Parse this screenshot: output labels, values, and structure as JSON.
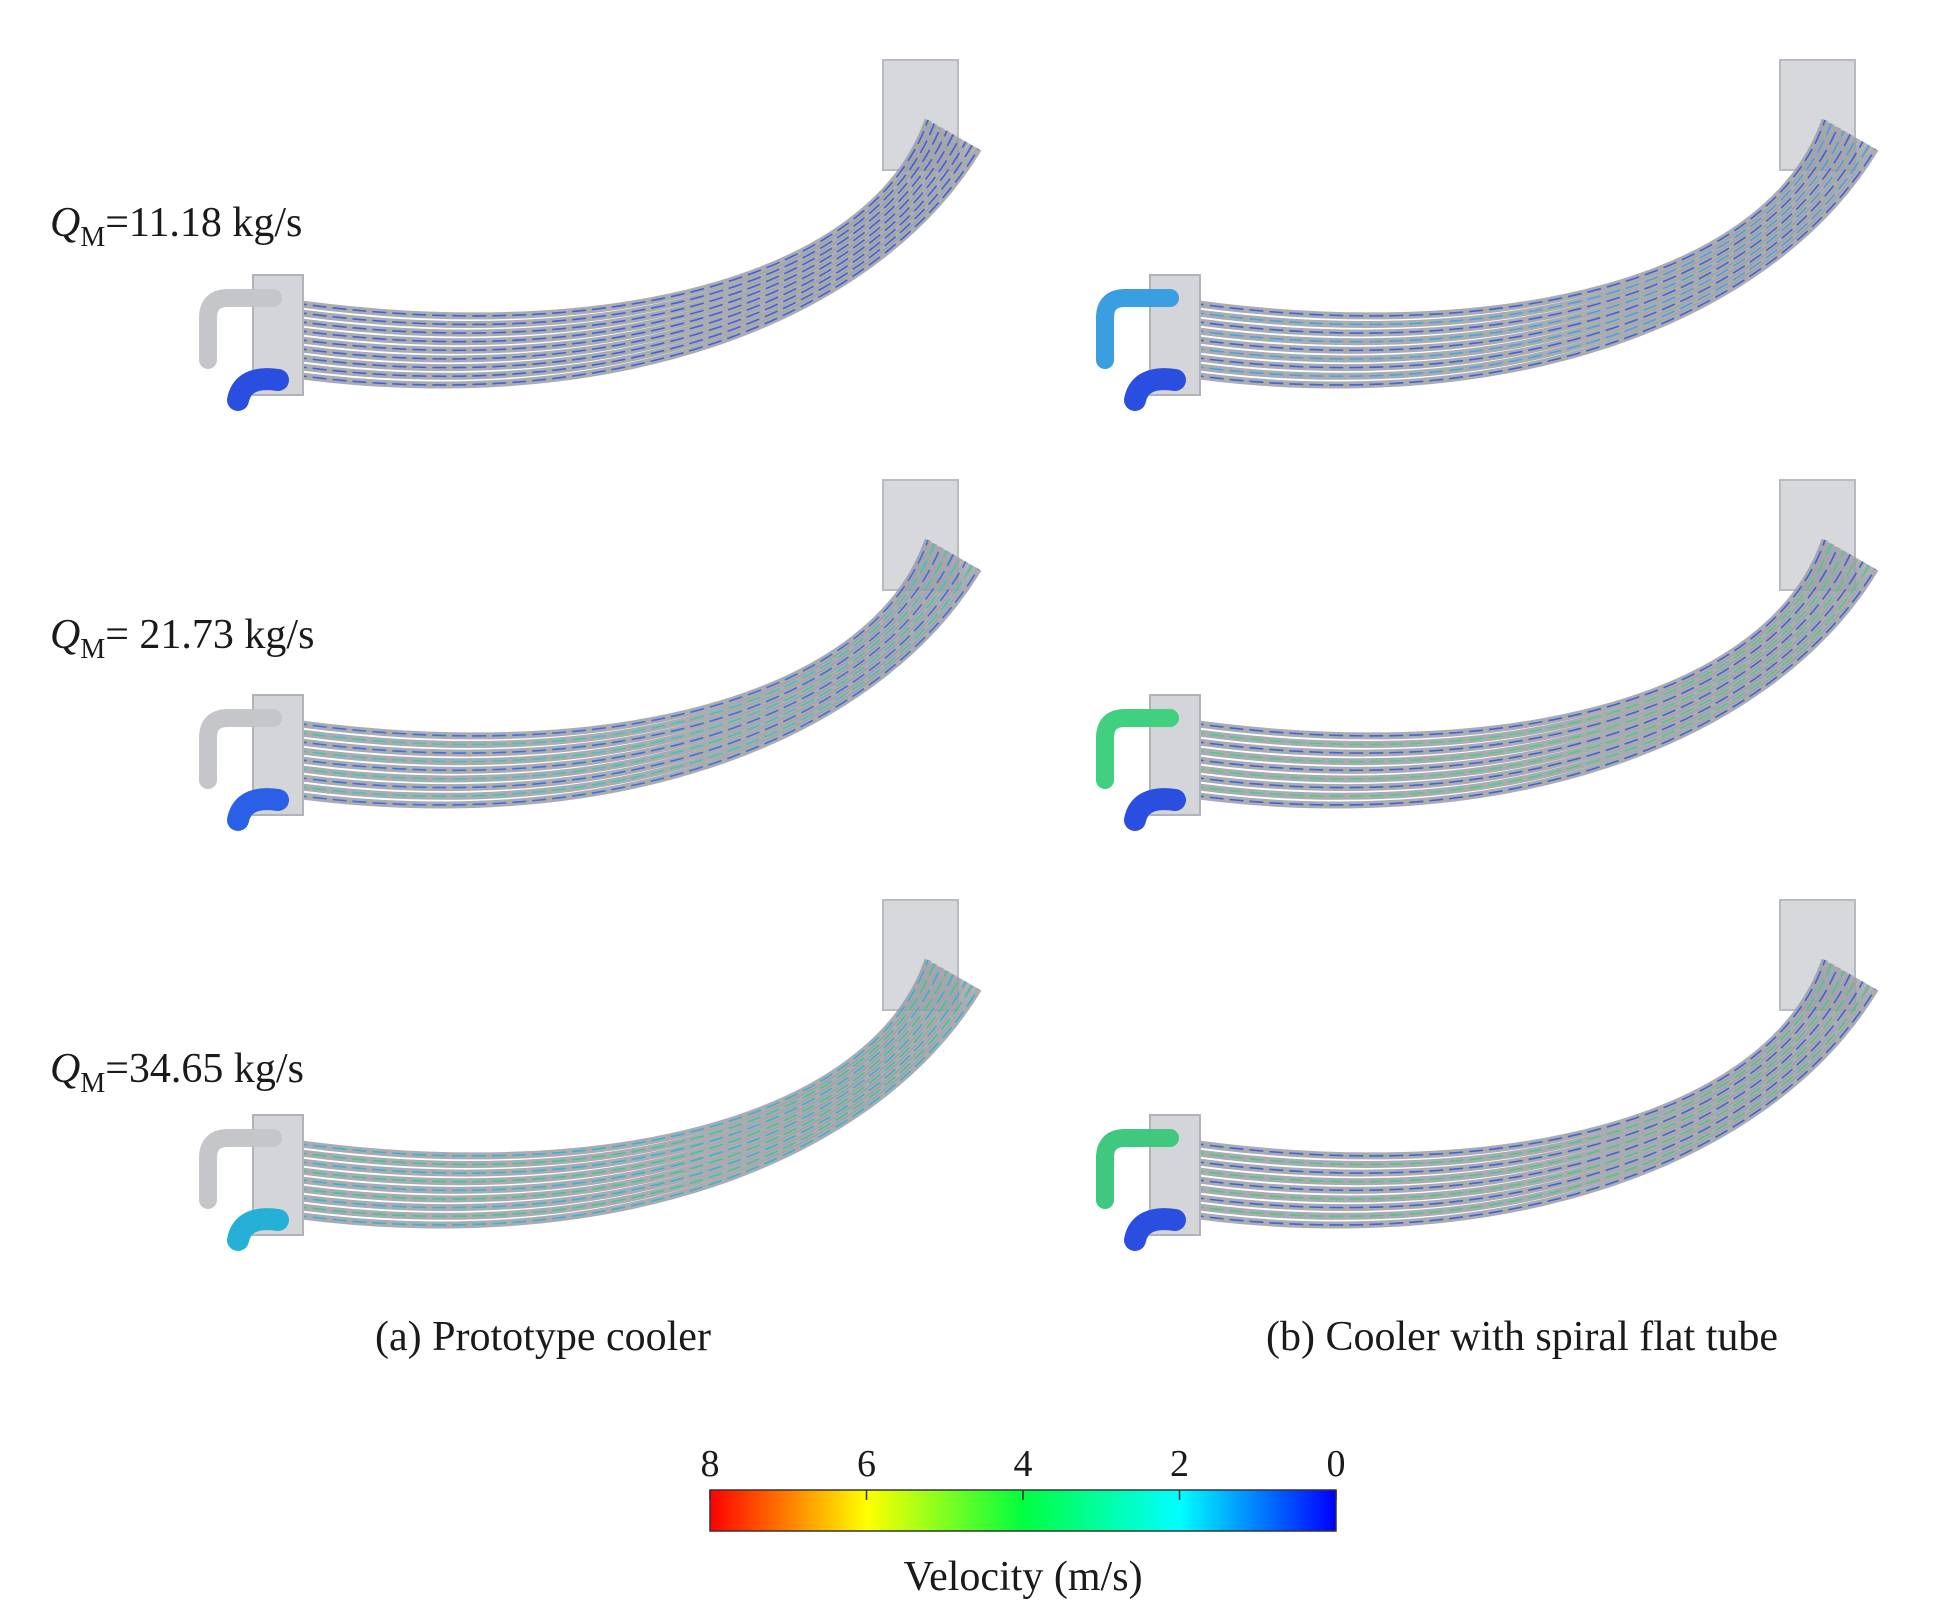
{
  "rows": [
    {
      "symbol": "Q",
      "subscript": "M",
      "text": "=11.18 kg/s"
    },
    {
      "symbol": "Q",
      "subscript": "M",
      "text": "= 21.73 kg/s"
    },
    {
      "symbol": "Q",
      "subscript": "M",
      "text": "=34.65 kg/s"
    }
  ],
  "captions": [
    "(a) Prototype cooler",
    "(b) Cooler with spiral flat tube"
  ],
  "colorbar": {
    "label": "Velocity (m/s)",
    "range": [
      8,
      0
    ],
    "ticks": [
      8,
      6,
      4,
      2,
      0
    ],
    "colors": [
      "#ff0000",
      "#ffff00",
      "#00ff40",
      "#00ffff",
      "#0000ff"
    ]
  }
}
